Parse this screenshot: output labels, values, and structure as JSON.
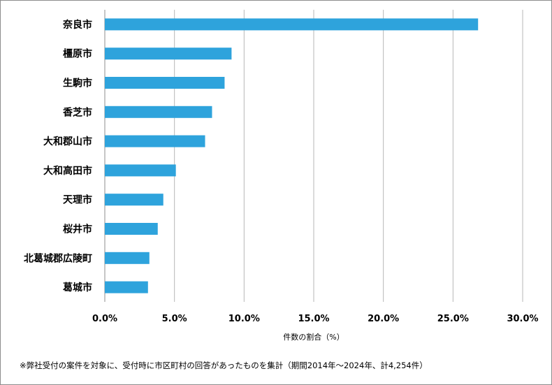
{
  "chart_data": {
    "type": "bar",
    "orientation": "horizontal",
    "categories": [
      "奈良市",
      "橿原市",
      "生駒市",
      "香芝市",
      "大和郡山市",
      "大和高田市",
      "天理市",
      "桜井市",
      "北葛城郡広陵町",
      "葛城市"
    ],
    "values": [
      26.8,
      9.1,
      8.6,
      7.7,
      7.2,
      5.1,
      4.2,
      3.8,
      3.2,
      3.1
    ],
    "xlim": [
      0,
      30
    ],
    "xticks": [
      0,
      5,
      10,
      15,
      20,
      25,
      30
    ],
    "tick_labels": [
      "0.0%",
      "5.0%",
      "10.0%",
      "15.0%",
      "20.0%",
      "25.0%",
      "30.0%"
    ],
    "xlabel": "件数の割合（%）",
    "ylabel": "",
    "title": "",
    "grid": "vertical",
    "bar_color": "#2ea3dc",
    "grid_color": "#b7b7b7",
    "footnote": "※弊社受付の案件を対象に、受付時に市区町村の回答があったものを集計（期間2014年～2024年、計4,254件）"
  }
}
